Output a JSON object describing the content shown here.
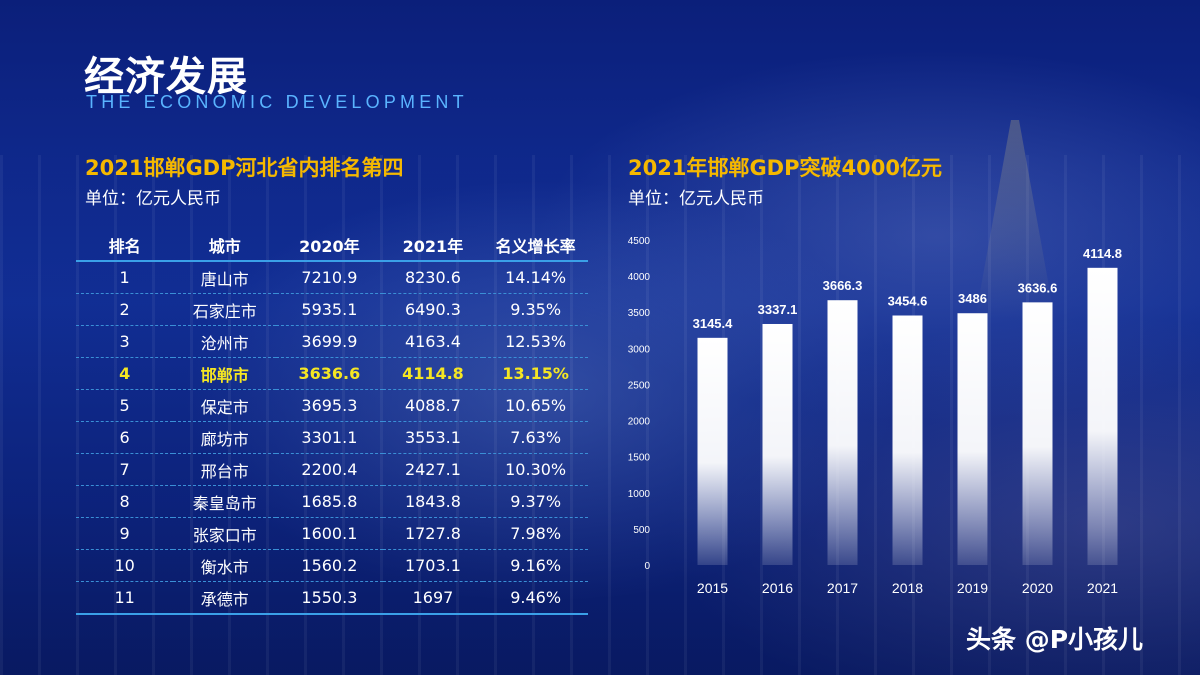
{
  "header": {
    "title": "经济发展",
    "subtitle": "THE ECONOMIC DEVELOPMENT"
  },
  "left": {
    "title": "2021邯郸GDP河北省内排名第四",
    "unit": "单位：亿元人民币",
    "columns": [
      "排名",
      "城市",
      "2020年",
      "2021年",
      "名义增长率"
    ],
    "rows": [
      {
        "rank": "1",
        "city": "唐山市",
        "y2020": "7210.9",
        "y2021": "8230.6",
        "rate": "14.14%"
      },
      {
        "rank": "2",
        "city": "石家庄市",
        "y2020": "5935.1",
        "y2021": "6490.3",
        "rate": "9.35%"
      },
      {
        "rank": "3",
        "city": "沧州市",
        "y2020": "3699.9",
        "y2021": "4163.4",
        "rate": "12.53%"
      },
      {
        "rank": "4",
        "city": "邯郸市",
        "y2020": "3636.6",
        "y2021": "4114.8",
        "rate": "13.15%"
      },
      {
        "rank": "5",
        "city": "保定市",
        "y2020": "3695.3",
        "y2021": "4088.7",
        "rate": "10.65%"
      },
      {
        "rank": "6",
        "city": "廊坊市",
        "y2020": "3301.1",
        "y2021": "3553.1",
        "rate": "7.63%"
      },
      {
        "rank": "7",
        "city": "邢台市",
        "y2020": "2200.4",
        "y2021": "2427.1",
        "rate": "10.30%"
      },
      {
        "rank": "8",
        "city": "秦皇岛市",
        "y2020": "1685.8",
        "y2021": "1843.8",
        "rate": "9.37%"
      },
      {
        "rank": "9",
        "city": "张家口市",
        "y2020": "1600.1",
        "y2021": "1727.8",
        "rate": "7.98%"
      },
      {
        "rank": "10",
        "city": "衡水市",
        "y2020": "1560.2",
        "y2021": "1703.1",
        "rate": "9.16%"
      },
      {
        "rank": "11",
        "city": "承德市",
        "y2020": "1550.3",
        "y2021": "1697",
        "rate": "9.46%"
      }
    ],
    "highlight_color": "#f5e623"
  },
  "right": {
    "title": "2021年邯郸GDP突破4000亿元",
    "unit": "单位：亿元人民币"
  },
  "chart_data": {
    "type": "bar",
    "categories": [
      "2015",
      "2016",
      "2017",
      "2018",
      "2019",
      "2020",
      "2021"
    ],
    "values": [
      3145.4,
      3337.1,
      3666.3,
      3454.6,
      3486,
      3636.6,
      4114.8
    ],
    "value_labels": [
      "3145.4",
      "3337.1",
      "3666.3",
      "3454.6",
      "3486",
      "3636.6",
      "4114.8"
    ],
    "yticks": [
      0,
      500,
      1000,
      1500,
      2000,
      2500,
      3000,
      3500,
      4000,
      4500
    ],
    "ylim": [
      0,
      4500
    ],
    "grid": false,
    "bar_color": "#ffffff"
  },
  "footer": {
    "watermark": "头条 @P小孩儿"
  },
  "colors": {
    "accent_gold": "#f5b800",
    "subtitle_blue": "#5ab4ff",
    "rule_blue": "#3aa0e8"
  }
}
